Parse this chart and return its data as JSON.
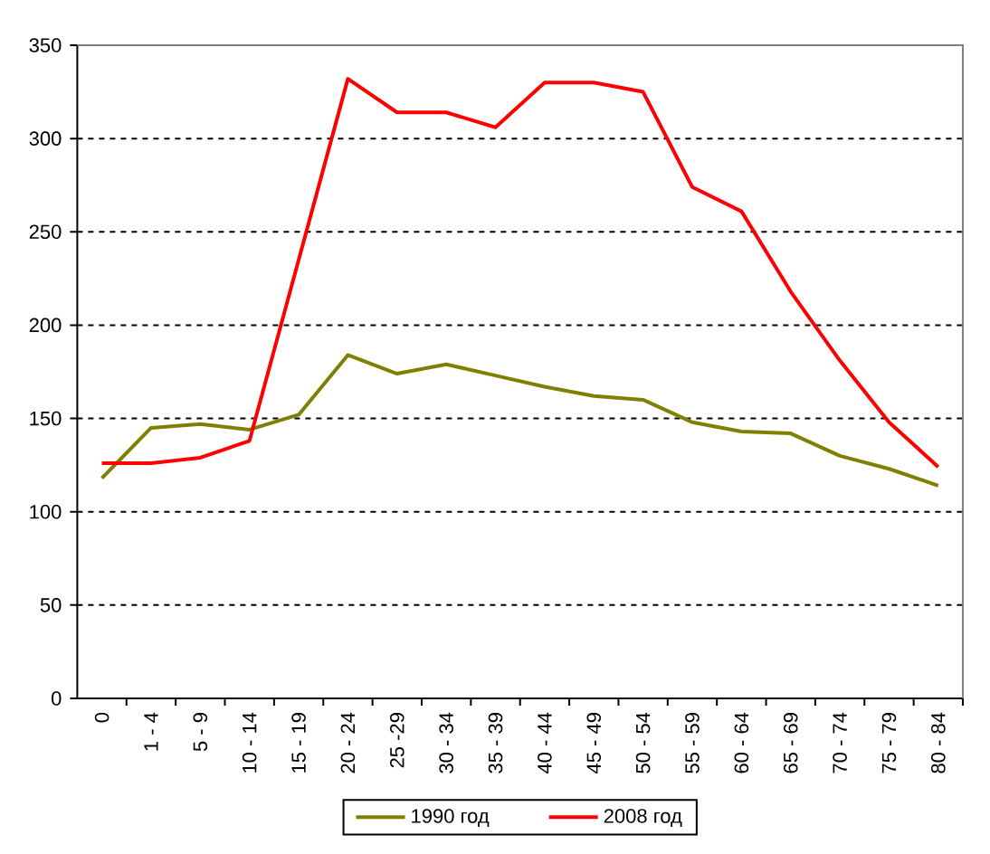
{
  "chart_data": {
    "type": "line",
    "categories": [
      "0",
      "1 - 4",
      "5 - 9",
      "10 - 14",
      "15 - 19",
      "20 - 24",
      "25 -29",
      "30 - 34",
      "35 - 39",
      "40 - 44",
      "45 - 49",
      "50 - 54",
      "55 - 59",
      "60 - 64",
      "65 - 69",
      "70 - 74",
      "75 - 79",
      "80 - 84"
    ],
    "series": [
      {
        "name": "1990 год",
        "color": "#808000",
        "values": [
          118,
          145,
          147,
          144,
          152,
          184,
          174,
          179,
          173,
          167,
          162,
          160,
          148,
          143,
          142,
          130,
          123,
          114
        ]
      },
      {
        "name": "2008 год",
        "color": "#ff0000",
        "values": [
          126,
          126,
          129,
          138,
          235,
          332,
          314,
          314,
          306,
          330,
          330,
          325,
          274,
          261,
          218,
          181,
          148,
          124
        ]
      }
    ],
    "ylim": [
      0,
      350
    ],
    "yticks": [
      0,
      50,
      100,
      150,
      200,
      250,
      300,
      350
    ],
    "grid": "y",
    "legend": "bottom",
    "line_style": "solid"
  }
}
